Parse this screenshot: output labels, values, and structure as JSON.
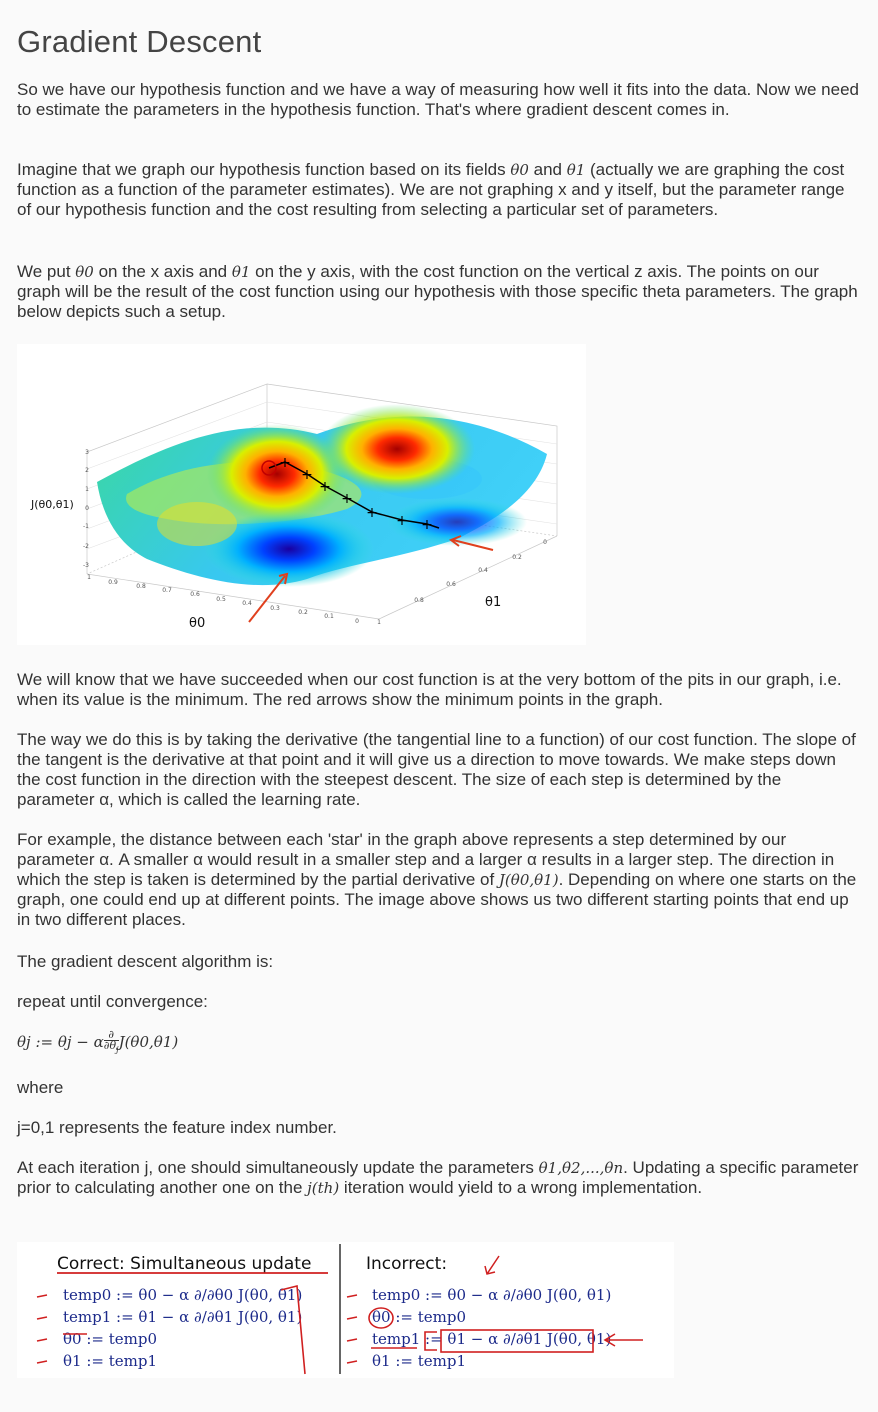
{
  "title": "Gradient Descent",
  "paragraphs": {
    "p1": "So we have our hypothesis function and we have a way of measuring how well it fits into the data. Now we need to estimate the parameters in the hypothesis function. That's where gradient descent comes in.",
    "p2a": "Imagine that we graph our hypothesis function based on its fields ",
    "p2_theta0": "θ0",
    "p2b": " and ",
    "p2_theta1": "θ1",
    "p2c": " (actually we are graphing the cost function as a function of the parameter estimates). We are not graphing x and y itself, but the parameter range of our hypothesis function and the cost resulting from selecting a particular set of parameters.",
    "p3a": "We put ",
    "p3_theta0": "θ0",
    "p3b": " on the x axis and ",
    "p3_theta1": "θ1",
    "p3c": " on the y axis, with the cost function on the vertical z axis. The points on our graph will be the result of the cost function using our hypothesis with those specific theta parameters. The graph below depicts such a setup.",
    "p4": "We will know that we have succeeded when our cost function is at the very bottom of the pits in our graph, i.e. when its value is the minimum. The red arrows show the minimum points in the graph.",
    "p5": "The way we do this is by taking the derivative (the tangential line to a function) of our cost function. The slope of the tangent is the derivative at that point and it will give us a direction to move towards. We make steps down the cost function in the direction with the steepest descent. The size of each step is determined by the parameter α, which is called the learning rate.",
    "p6a": "For example, the distance between each 'star' in the graph above represents a step determined by our parameter α. A smaller α would result in a smaller step and a larger α results in a larger step. The direction in which the step is taken is determined by the partial derivative of ",
    "p6_math": "J(θ0,θ1)",
    "p6b": ". Depending on where one starts on the graph, one could end up at different points. The image above shows us two different starting points that end up in two different places.",
    "p7": "The gradient descent algorithm is:",
    "p8": "repeat until convergence:",
    "formula_lhs": "θj := θj − α",
    "formula_rhs": "J(θ0,θ1)",
    "p9": "where",
    "p10": "j=0,1 represents the feature index number.",
    "p11a": "At each iteration j, one should simultaneously update the parameters ",
    "p11_math": "θ1,θ2,...,θn",
    "p11b": ". Updating a specific parameter prior to calculating another one on the ",
    "p11_jth": "j(th)",
    "p11c": " iteration would yield to a wrong implementation."
  },
  "figure1": {
    "zlabel": "J(θ0,θ1)",
    "xlabel": "θ0",
    "ylabel": "θ1",
    "z_ticks": [
      "3",
      "2",
      "1",
      "0",
      "-1",
      "-2",
      "-3"
    ],
    "x_ticks": [
      "1",
      "0.9",
      "0.8",
      "0.7",
      "0.6",
      "0.5",
      "0.4",
      "0.3",
      "0.2",
      "0.1",
      "0"
    ],
    "y_ticks": [
      "0",
      "0.2",
      "0.4",
      "0.6",
      "0.8",
      "1"
    ]
  },
  "figure2": {
    "correct_title": "Correct: Simultaneous update",
    "incorrect_title": "Incorrect:",
    "correct_lines": [
      "temp0 := θ0 − α ∂/∂θ0 J(θ0, θ1)",
      "temp1 := θ1 − α ∂/∂θ1 J(θ0, θ1)",
      "θ0 := temp0",
      "θ1 := temp1"
    ],
    "incorrect_lines": [
      "temp0 := θ0 − α ∂/∂θ0 J(θ0, θ1)",
      "θ0 := temp0",
      "temp1 := θ1 − α ∂/∂θ1 J(θ0, θ1)",
      "θ1 := temp1"
    ]
  }
}
